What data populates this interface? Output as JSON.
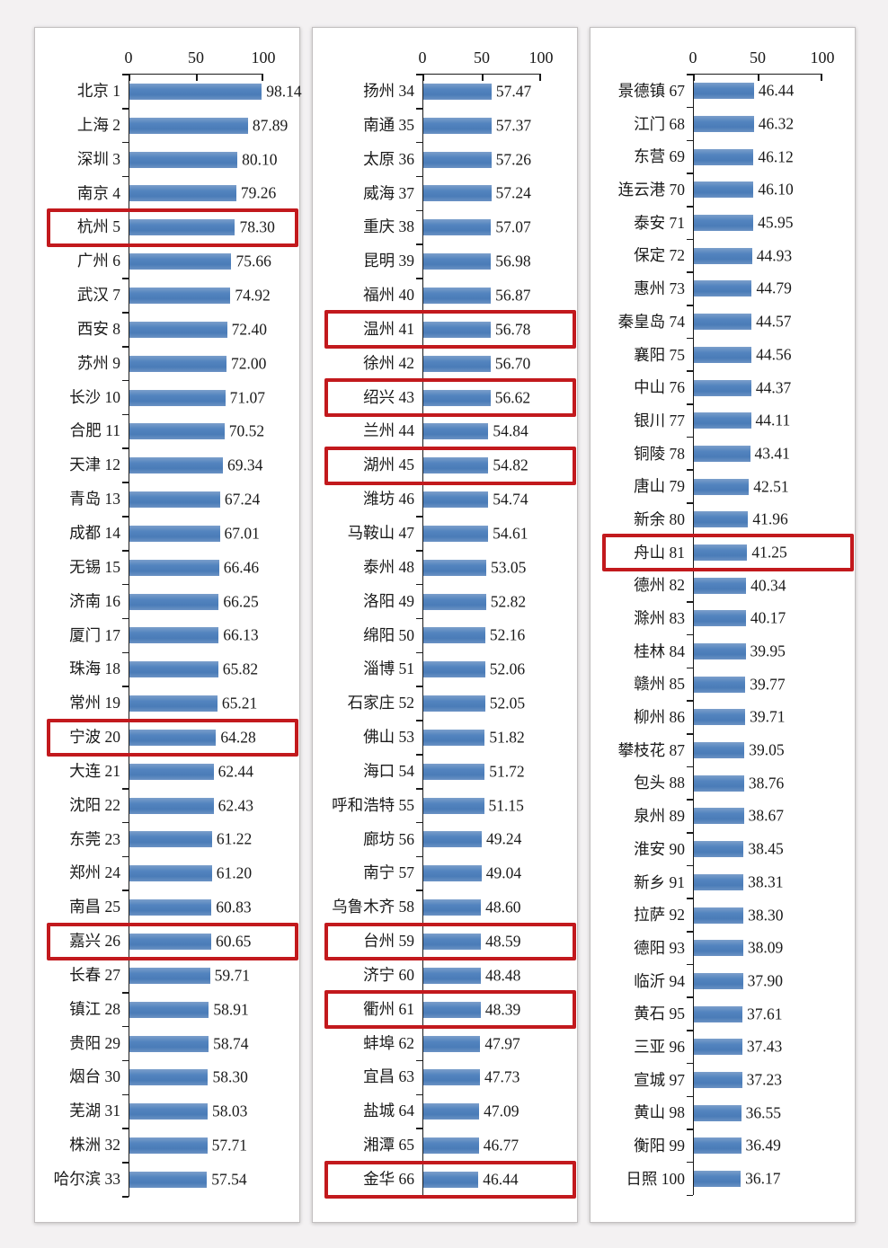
{
  "colors": {
    "bar": "#4f81bd",
    "highlight_border": "#c2191d",
    "axis": "#1a1a1a",
    "text": "#1a1a1a",
    "card_background": "#ffffff",
    "page_background": "#f3f1f2"
  },
  "axis": {
    "ticks": [
      "0",
      "50",
      "100"
    ],
    "min": 0,
    "max": 100
  },
  "chart_data": [
    {
      "type": "bar",
      "orientation": "horizontal",
      "title": "",
      "xlabel": "",
      "ylabel": "",
      "xlim": [
        0,
        100
      ],
      "x_ticks": [
        0,
        50,
        100
      ],
      "grid": false,
      "legend": "none",
      "bar_color": "#4f81bd",
      "highlight_color": "#c2191d",
      "categories": [
        "北京 1",
        "上海 2",
        "深圳 3",
        "南京 4",
        "杭州 5",
        "广州 6",
        "武汉 7",
        "西安 8",
        "苏州 9",
        "长沙 10",
        "合肥 11",
        "天津 12",
        "青岛 13",
        "成都 14",
        "无锡 15",
        "济南 16",
        "厦门 17",
        "珠海 18",
        "常州 19",
        "宁波 20",
        "大连 21",
        "沈阳 22",
        "东莞 23",
        "郑州 24",
        "南昌 25",
        "嘉兴 26",
        "长春 27",
        "镇江 28",
        "贵阳 29",
        "烟台 30",
        "芜湖 31",
        "株洲 32",
        "哈尔滨 33"
      ],
      "values": [
        98.14,
        87.89,
        80.1,
        79.26,
        78.3,
        75.66,
        74.92,
        72.4,
        72.0,
        71.07,
        70.52,
        69.34,
        67.24,
        67.01,
        66.46,
        66.25,
        66.13,
        65.82,
        65.21,
        64.28,
        62.44,
        62.43,
        61.22,
        61.2,
        60.83,
        60.65,
        59.71,
        58.91,
        58.74,
        58.3,
        58.03,
        57.71,
        57.54
      ],
      "highlight_indexes": [
        4,
        19,
        25
      ]
    },
    {
      "type": "bar",
      "orientation": "horizontal",
      "title": "",
      "xlabel": "",
      "ylabel": "",
      "xlim": [
        0,
        100
      ],
      "x_ticks": [
        0,
        50,
        100
      ],
      "grid": false,
      "legend": "none",
      "bar_color": "#4f81bd",
      "highlight_color": "#c2191d",
      "categories": [
        "扬州 34",
        "南通 35",
        "太原 36",
        "威海 37",
        "重庆 38",
        "昆明 39",
        "福州 40",
        "温州 41",
        "徐州 42",
        "绍兴 43",
        "兰州 44",
        "湖州 45",
        "潍坊 46",
        "马鞍山 47",
        "泰州 48",
        "洛阳 49",
        "绵阳 50",
        "淄博 51",
        "石家庄 52",
        "佛山 53",
        "海口 54",
        "呼和浩特 55",
        "廊坊 56",
        "南宁 57",
        "乌鲁木齐 58",
        "台州 59",
        "济宁 60",
        "衢州 61",
        "蚌埠 62",
        "宜昌 63",
        "盐城 64",
        "湘潭 65",
        "金华 66"
      ],
      "values": [
        57.47,
        57.37,
        57.26,
        57.24,
        57.07,
        56.98,
        56.87,
        56.78,
        56.7,
        56.62,
        54.84,
        54.82,
        54.74,
        54.61,
        53.05,
        52.82,
        52.16,
        52.06,
        52.05,
        51.82,
        51.72,
        51.15,
        49.24,
        49.04,
        48.6,
        48.59,
        48.48,
        48.39,
        47.97,
        47.73,
        47.09,
        46.77,
        46.44
      ],
      "highlight_indexes": [
        7,
        9,
        11,
        25,
        27,
        32
      ]
    },
    {
      "type": "bar",
      "orientation": "horizontal",
      "title": "",
      "xlabel": "",
      "ylabel": "",
      "xlim": [
        0,
        100
      ],
      "x_ticks": [
        0,
        50,
        100
      ],
      "grid": false,
      "legend": "none",
      "bar_color": "#4f81bd",
      "highlight_color": "#c2191d",
      "categories": [
        "景德镇 67",
        "江门 68",
        "东营 69",
        "连云港 70",
        "泰安 71",
        "保定 72",
        "惠州 73",
        "秦皇岛 74",
        "襄阳 75",
        "中山 76",
        "银川 77",
        "铜陵 78",
        "唐山 79",
        "新余 80",
        "舟山 81",
        "德州 82",
        "滁州 83",
        "桂林 84",
        "赣州 85",
        "柳州 86",
        "攀枝花 87",
        "包头 88",
        "泉州 89",
        "淮安 90",
        "新乡 91",
        "拉萨 92",
        "德阳 93",
        "临沂 94",
        "黄石 95",
        "三亚 96",
        "宣城 97",
        "黄山 98",
        "衡阳 99",
        "日照 100"
      ],
      "values": [
        46.44,
        46.32,
        46.12,
        46.1,
        45.95,
        44.93,
        44.79,
        44.57,
        44.56,
        44.37,
        44.11,
        43.41,
        42.51,
        41.96,
        41.25,
        40.34,
        40.17,
        39.95,
        39.77,
        39.71,
        39.05,
        38.76,
        38.67,
        38.45,
        38.31,
        38.3,
        38.09,
        37.9,
        37.61,
        37.43,
        37.23,
        36.55,
        36.49,
        36.17
      ],
      "highlight_indexes": [
        14
      ]
    }
  ]
}
